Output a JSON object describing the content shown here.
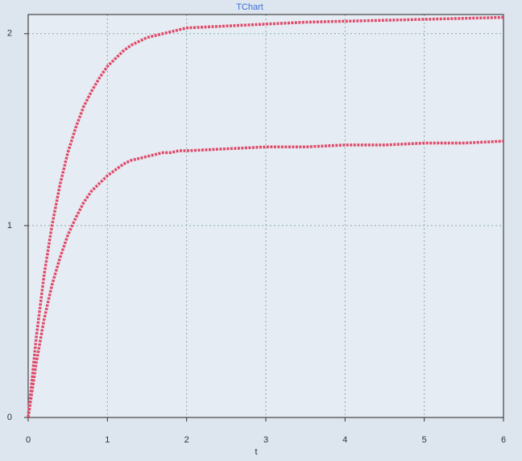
{
  "chart_data": {
    "type": "line",
    "title": "TChart",
    "x_label": "t",
    "x": [
      0,
      0.1,
      0.2,
      0.3,
      0.4,
      0.5,
      0.6,
      0.7,
      0.8,
      0.9,
      1.0,
      1.1,
      1.2,
      1.3,
      1.4,
      1.5,
      1.6,
      1.7,
      1.8,
      1.9,
      2.0,
      2.5,
      3.0,
      3.5,
      4.0,
      4.5,
      5.0,
      5.5,
      6.0
    ],
    "series": [
      {
        "color": "#e04a6a",
        "values": [
          0,
          0.41,
          0.74,
          1.0,
          1.21,
          1.38,
          1.51,
          1.62,
          1.7,
          1.77,
          1.83,
          1.87,
          1.91,
          1.94,
          1.96,
          1.98,
          1.99,
          2.0,
          2.01,
          2.02,
          2.03,
          2.04,
          2.05,
          2.06,
          2.065,
          2.07,
          2.075,
          2.08,
          2.085
        ]
      },
      {
        "color": "#e04a6a",
        "values": [
          0,
          0.28,
          0.51,
          0.69,
          0.83,
          0.95,
          1.04,
          1.12,
          1.18,
          1.22,
          1.26,
          1.29,
          1.32,
          1.34,
          1.35,
          1.36,
          1.37,
          1.38,
          1.38,
          1.39,
          1.39,
          1.4,
          1.41,
          1.41,
          1.42,
          1.42,
          1.43,
          1.43,
          1.44
        ]
      }
    ],
    "xlim": [
      0,
      6
    ],
    "xticks": [
      0,
      1,
      2,
      3,
      4,
      5,
      6
    ],
    "ylim": [
      0,
      2.1
    ],
    "yticks": [
      0,
      1,
      2
    ],
    "grid": true
  }
}
